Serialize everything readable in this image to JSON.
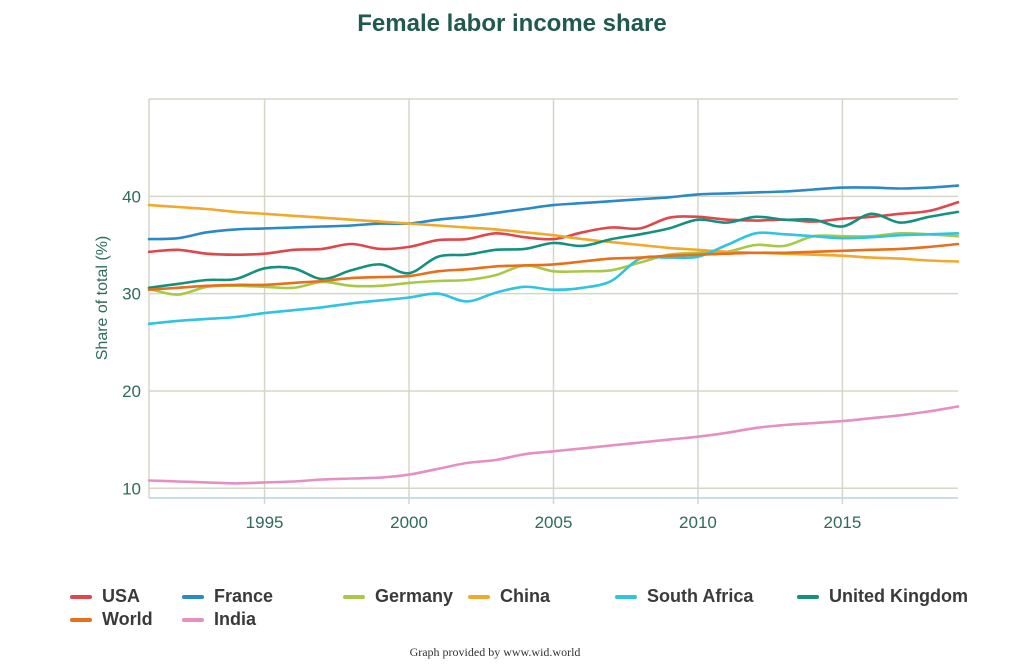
{
  "chart_data": {
    "type": "line",
    "title": "Female labor income share",
    "ylabel": "Share of total (%)",
    "xlabel": "",
    "xlim": [
      1991,
      2019
    ],
    "ylim": [
      9,
      50
    ],
    "x_ticks": [
      1995,
      2000,
      2005,
      2010,
      2015
    ],
    "y_ticks": [
      10,
      20,
      30,
      40
    ],
    "grid": true,
    "legend_position": "bottom",
    "x": [
      1991,
      1992,
      1993,
      1994,
      1995,
      1996,
      1997,
      1998,
      1999,
      2000,
      2001,
      2002,
      2003,
      2004,
      2005,
      2006,
      2007,
      2008,
      2009,
      2010,
      2011,
      2012,
      2013,
      2014,
      2015,
      2016,
      2017,
      2018,
      2019
    ],
    "series": [
      {
        "name": "USA",
        "color": "#e0474c",
        "values": [
          34.3,
          34.5,
          34.1,
          34.0,
          34.1,
          34.5,
          34.6,
          35.1,
          34.6,
          34.8,
          35.5,
          35.6,
          36.2,
          35.8,
          35.6,
          36.3,
          36.8,
          36.7,
          37.8,
          37.9,
          37.6,
          37.5,
          37.6,
          37.4,
          37.7,
          37.9,
          38.2,
          38.5,
          39.4
        ]
      },
      {
        "name": "France",
        "color": "#2b89c8",
        "values": [
          35.6,
          35.7,
          36.3,
          36.6,
          36.7,
          36.8,
          36.9,
          37.0,
          37.2,
          37.2,
          37.6,
          37.9,
          38.3,
          38.7,
          39.1,
          39.3,
          39.5,
          39.7,
          39.9,
          40.2,
          40.3,
          40.4,
          40.5,
          40.7,
          40.9,
          40.9,
          40.8,
          40.9,
          41.1
        ]
      },
      {
        "name": "Germany",
        "color": "#a8c945",
        "values": [
          30.5,
          29.9,
          30.7,
          30.8,
          30.7,
          30.6,
          31.2,
          30.8,
          30.8,
          31.1,
          31.3,
          31.4,
          31.9,
          32.9,
          32.3,
          32.3,
          32.4,
          33.2,
          34.0,
          34.2,
          34.3,
          35.0,
          34.9,
          35.9,
          35.9,
          35.9,
          36.2,
          36.1,
          35.9
        ]
      },
      {
        "name": "China",
        "color": "#f2a82a",
        "values": [
          39.1,
          38.9,
          38.7,
          38.4,
          38.2,
          38.0,
          37.8,
          37.6,
          37.4,
          37.2,
          37.0,
          36.8,
          36.6,
          36.3,
          36.0,
          35.6,
          35.3,
          35.0,
          34.7,
          34.5,
          34.3,
          34.2,
          34.1,
          34.0,
          33.9,
          33.7,
          33.6,
          33.4,
          33.3
        ]
      },
      {
        "name": "South Africa",
        "color": "#2fc4e0",
        "values": [
          26.9,
          27.2,
          27.4,
          27.6,
          28.0,
          28.3,
          28.6,
          29.0,
          29.3,
          29.6,
          30.0,
          29.2,
          30.1,
          30.7,
          30.4,
          30.6,
          31.3,
          33.6,
          33.7,
          33.8,
          35.0,
          36.2,
          36.1,
          35.9,
          35.7,
          35.8,
          36.0,
          36.1,
          36.2
        ]
      },
      {
        "name": "United Kingdom",
        "color": "#14917e",
        "values": [
          30.6,
          31.0,
          31.4,
          31.5,
          32.6,
          32.6,
          31.5,
          32.4,
          33.0,
          32.1,
          33.8,
          34.0,
          34.5,
          34.6,
          35.2,
          34.9,
          35.6,
          36.1,
          36.7,
          37.6,
          37.3,
          37.9,
          37.6,
          37.6,
          36.9,
          38.2,
          37.3,
          37.9,
          38.4
        ]
      },
      {
        "name": "World",
        "color": "#e86f1c",
        "values": [
          30.4,
          30.6,
          30.8,
          30.9,
          30.9,
          31.1,
          31.3,
          31.6,
          31.7,
          31.8,
          32.3,
          32.5,
          32.8,
          32.9,
          33.0,
          33.3,
          33.6,
          33.7,
          33.9,
          34.0,
          34.1,
          34.2,
          34.2,
          34.3,
          34.4,
          34.5,
          34.6,
          34.8,
          35.1
        ]
      },
      {
        "name": "India",
        "color": "#e590c3",
        "values": [
          10.8,
          10.7,
          10.6,
          10.5,
          10.6,
          10.7,
          10.9,
          11.0,
          11.1,
          11.4,
          12.0,
          12.6,
          12.9,
          13.5,
          13.8,
          14.1,
          14.4,
          14.7,
          15.0,
          15.3,
          15.7,
          16.2,
          16.5,
          16.7,
          16.9,
          17.2,
          17.5,
          17.9,
          18.4
        ]
      }
    ]
  },
  "footer": {
    "credit": "Graph provided by www.wid.world"
  }
}
